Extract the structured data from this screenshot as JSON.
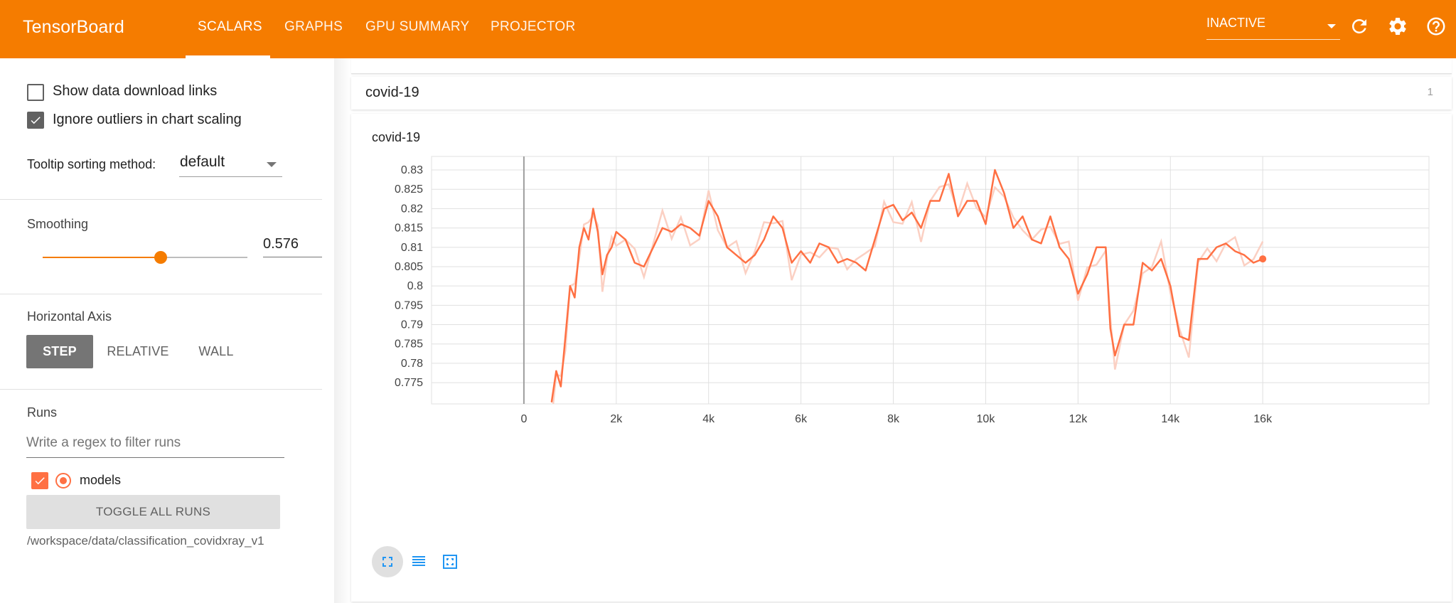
{
  "header": {
    "brand": "TensorBoard",
    "tabs": [
      {
        "label": "SCALARS",
        "active": true
      },
      {
        "label": "GRAPHS",
        "active": false
      },
      {
        "label": "GPU SUMMARY",
        "active": false
      },
      {
        "label": "PROJECTOR",
        "active": false
      }
    ],
    "run_status": "INACTIVE",
    "icons": [
      "refresh-icon",
      "settings-icon",
      "help-icon"
    ],
    "accent_color": "#f57c00"
  },
  "sidebar": {
    "show_download_links": {
      "label": "Show data download links",
      "checked": false
    },
    "ignore_outliers": {
      "label": "Ignore outliers in chart scaling",
      "checked": true
    },
    "tooltip_sorting": {
      "label": "Tooltip sorting method:",
      "value": "default"
    },
    "smoothing": {
      "label": "Smoothing",
      "value": "0.576",
      "fraction": 0.576
    },
    "horizontal_axis": {
      "label": "Horizontal Axis",
      "options": [
        {
          "label": "STEP",
          "active": true
        },
        {
          "label": "RELATIVE",
          "active": false
        },
        {
          "label": "WALL",
          "active": false
        }
      ]
    },
    "runs": {
      "label": "Runs",
      "filter_placeholder": "Write a regex to filter runs",
      "items": [
        {
          "name": "models",
          "checked": true,
          "color": "#ff7043"
        }
      ],
      "toggle_label": "TOGGLE ALL RUNS",
      "path": "/workspace/data/classification_covidxray_v1"
    }
  },
  "main": {
    "group": {
      "title": "covid-19",
      "count": "1"
    },
    "chart": {
      "title": "covid-19"
    }
  },
  "chart_data": {
    "type": "line",
    "title": "covid-19",
    "xlabel": "",
    "ylabel": "",
    "xlim": [
      -2000,
      19600
    ],
    "ylim": [
      0.7695,
      0.8335
    ],
    "x_ticks": [
      0,
      2000,
      4000,
      6000,
      8000,
      10000,
      12000,
      14000,
      16000
    ],
    "x_tick_labels": [
      "0",
      "2k",
      "4k",
      "6k",
      "8k",
      "10k",
      "12k",
      "14k",
      "16k"
    ],
    "y_ticks": [
      0.775,
      0.78,
      0.785,
      0.79,
      0.795,
      0.8,
      0.805,
      0.81,
      0.815,
      0.82,
      0.825,
      0.83
    ],
    "y_tick_labels": [
      "0.775",
      "0.78",
      "0.785",
      "0.79",
      "0.795",
      "0.8",
      "0.805",
      "0.81",
      "0.815",
      "0.82",
      "0.825",
      "0.83"
    ],
    "grid": true,
    "series": [
      {
        "color": "#ff7043",
        "raw_color": "#fbd0c3",
        "x": [
          600,
          700,
          800,
          900,
          1000,
          1100,
          1200,
          1300,
          1400,
          1500,
          1600,
          1700,
          1800,
          1900,
          2000,
          2200,
          2400,
          2600,
          2800,
          3000,
          3200,
          3400,
          3600,
          3800,
          4000,
          4200,
          4400,
          4600,
          4800,
          5000,
          5200,
          5400,
          5600,
          5800,
          6000,
          6200,
          6400,
          6600,
          6800,
          7000,
          7200,
          7400,
          7600,
          7800,
          8000,
          8200,
          8400,
          8600,
          8800,
          9000,
          9200,
          9400,
          9600,
          9800,
          10000,
          10200,
          10400,
          10600,
          10800,
          11000,
          11200,
          11400,
          11600,
          11800,
          12000,
          12200,
          12400,
          12600,
          12700,
          12800,
          13000,
          13200,
          13400,
          13600,
          13800,
          14000,
          14200,
          14400,
          14600,
          14800,
          15000,
          15200,
          15400,
          15600,
          15800,
          16000
        ],
        "y": [
          0.77,
          0.778,
          0.774,
          0.787,
          0.8,
          0.797,
          0.81,
          0.815,
          0.812,
          0.82,
          0.814,
          0.803,
          0.808,
          0.81,
          0.814,
          0.812,
          0.806,
          0.805,
          0.81,
          0.815,
          0.814,
          0.816,
          0.815,
          0.813,
          0.822,
          0.818,
          0.81,
          0.808,
          0.806,
          0.808,
          0.812,
          0.818,
          0.815,
          0.806,
          0.809,
          0.806,
          0.811,
          0.81,
          0.806,
          0.807,
          0.806,
          0.804,
          0.812,
          0.82,
          0.821,
          0.817,
          0.819,
          0.815,
          0.822,
          0.822,
          0.829,
          0.818,
          0.822,
          0.822,
          0.816,
          0.83,
          0.824,
          0.815,
          0.818,
          0.812,
          0.811,
          0.818,
          0.81,
          0.807,
          0.798,
          0.803,
          0.81,
          0.81,
          0.789,
          0.782,
          0.79,
          0.79,
          0.806,
          0.804,
          0.807,
          0.8,
          0.787,
          0.786,
          0.807,
          0.807,
          0.81,
          0.811,
          0.809,
          0.808,
          0.806,
          0.807
        ]
      }
    ]
  }
}
